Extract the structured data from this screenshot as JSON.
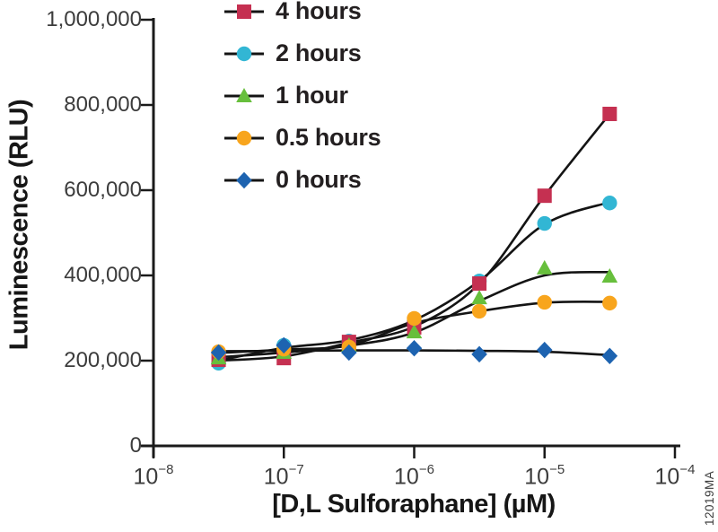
{
  "figure": {
    "watermark": "12019MA",
    "background": "#ffffff",
    "axis_color": "#1a1a1a",
    "tick_label_color": "#3c3c3c",
    "curve_color": "#141414"
  },
  "chart_data": {
    "type": "scatter",
    "title": "",
    "xlabel": "[D,L Sulforaphane] (µM)",
    "ylabel": "Luminescence (RLU)",
    "x_scale": "log",
    "xlim": [
      1e-08,
      0.0001
    ],
    "ylim": [
      0,
      1000000
    ],
    "grid": false,
    "legend_position": "top-left-inside",
    "x_ticks": [
      {
        "base": "10",
        "exp": "−8",
        "value": 1e-08
      },
      {
        "base": "10",
        "exp": "−7",
        "value": 1e-07
      },
      {
        "base": "10",
        "exp": "−6",
        "value": 1e-06
      },
      {
        "base": "10",
        "exp": "−5",
        "value": 1e-05
      },
      {
        "base": "10",
        "exp": "−4",
        "value": 0.0001
      }
    ],
    "y_ticks": [
      {
        "label": "1,000,000",
        "value": 1000000
      },
      {
        "label": "800,000",
        "value": 800000
      },
      {
        "label": "600,000",
        "value": 600000
      },
      {
        "label": "400,000",
        "value": 400000
      },
      {
        "label": "200,000",
        "value": 200000
      },
      {
        "label": "0",
        "value": 0
      }
    ],
    "concentrations_uM": [
      3.16e-08,
      1e-07,
      3.16e-07,
      1e-06,
      3.16e-06,
      1e-05,
      3.16e-05
    ],
    "series": [
      {
        "name": "4 hours",
        "marker": "square",
        "color": "#c53051",
        "values": [
          202000,
          206000,
          244000,
          278000,
          381000,
          587000,
          779000
        ],
        "trend": [
          200000,
          210000,
          242000,
          280000,
          381000,
          587000,
          779000
        ]
      },
      {
        "name": "2 hours",
        "marker": "circle",
        "color": "#32b6d4",
        "values": [
          194000,
          236000,
          246000,
          293000,
          387000,
          522000,
          570000
        ],
        "trend": [
          200000,
          230000,
          248000,
          295000,
          387000,
          520000,
          572000
        ]
      },
      {
        "name": "1 hour",
        "marker": "triangle",
        "color": "#67bf3c",
        "values": [
          206000,
          219000,
          236000,
          267000,
          347000,
          417000,
          398000
        ],
        "trend": [
          208000,
          219000,
          235000,
          266000,
          340000,
          400000,
          408000
        ]
      },
      {
        "name": "0.5 hours",
        "marker": "circle",
        "color": "#f8a51d",
        "values": [
          221000,
          227000,
          232000,
          299000,
          316000,
          337000,
          335000
        ],
        "trend": [
          218000,
          226000,
          236000,
          288000,
          316000,
          336000,
          338000
        ]
      },
      {
        "name": "0 hours",
        "marker": "diamond",
        "color": "#1d63b0",
        "values": [
          219000,
          236000,
          219000,
          229000,
          215000,
          225000,
          211000
        ],
        "trend": [
          222000,
          223000,
          224000,
          224000,
          223000,
          221000,
          213000
        ]
      }
    ],
    "draw_order": [
      "2 hours",
      "4 hours",
      "1 hour",
      "0.5 hours",
      "0 hours"
    ]
  }
}
